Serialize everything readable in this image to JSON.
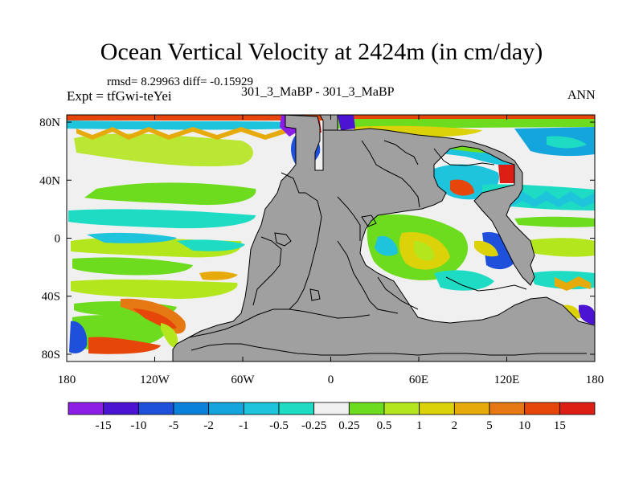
{
  "chart_data": {
    "type": "heatmap",
    "title": "Ocean Vertical Velocity at 2424m (in cm/day)",
    "stats_text": "rmsd= 8.29963  diff= -0.15929",
    "expt_text": "Expt = tfGwi-teYei",
    "center_label": "301_3_MaBP - 301_3_MaBP",
    "season_label": "ANN",
    "x_ticks": [
      "180",
      "120W",
      "60W",
      "0",
      "60E",
      "120E",
      "180"
    ],
    "x_tick_values": [
      -180,
      -120,
      -60,
      0,
      60,
      120,
      180
    ],
    "y_ticks": [
      "80N",
      "40N",
      "0",
      "40S",
      "80S"
    ],
    "y_tick_values": [
      80,
      40,
      0,
      -40,
      -80
    ],
    "xlim": [
      -180,
      180
    ],
    "ylim": [
      -85,
      85
    ],
    "colorbar": {
      "labels": [
        "-15",
        "-10",
        "-5",
        "-2",
        "-1",
        "-0.5",
        "-0.25",
        "0.25",
        "0.5",
        "1",
        "2",
        "5",
        "10",
        "15"
      ],
      "colors": [
        "#8c1ee6",
        "#4b14d2",
        "#1e50dc",
        "#0a82dc",
        "#14a5dc",
        "#1ec3dc",
        "#1edcc3",
        "#f0f0f0",
        "#6edc1e",
        "#b4e61e",
        "#dcd20a",
        "#e6aa0a",
        "#e67814",
        "#e6460a",
        "#dc1e14"
      ]
    },
    "land_color": "#a0a0a0"
  }
}
